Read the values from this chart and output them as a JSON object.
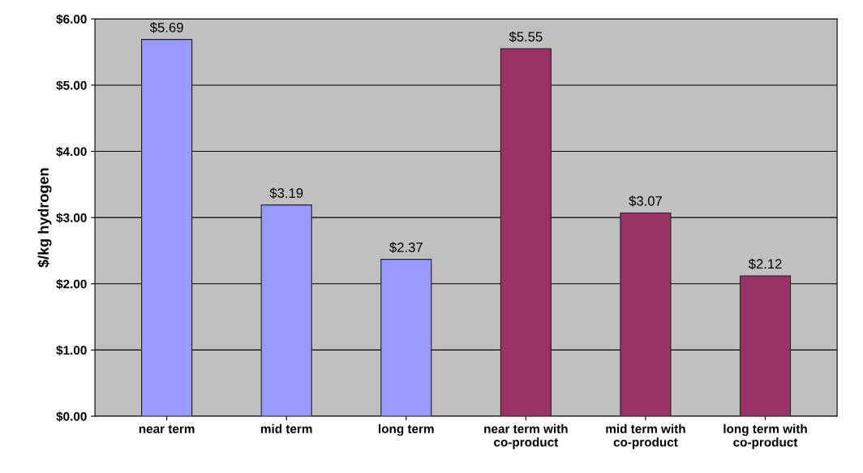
{
  "chart_data": {
    "type": "bar",
    "ylabel": "$/kg hydrogen",
    "categories": [
      "near term",
      "mid term",
      "long term",
      "near term with\nco-product",
      "mid term with\nco-product",
      "long term with\nco-product"
    ],
    "values": [
      5.69,
      3.19,
      2.37,
      5.55,
      3.07,
      2.12
    ],
    "value_labels": [
      "$5.69",
      "$3.19",
      "$2.37",
      "$5.55",
      "$3.07",
      "$2.12"
    ],
    "colors": [
      "#9999ff",
      "#9999ff",
      "#9999ff",
      "#993366",
      "#993366",
      "#993366"
    ],
    "ylim": [
      0,
      6
    ],
    "yticks": [
      {
        "value": 0,
        "label": "$0.00"
      },
      {
        "value": 1,
        "label": "$1.00"
      },
      {
        "value": 2,
        "label": "$2.00"
      },
      {
        "value": 3,
        "label": "$3.00"
      },
      {
        "value": 4,
        "label": "$4.00"
      },
      {
        "value": 5,
        "label": "$5.00"
      },
      {
        "value": 6,
        "label": "$6.00"
      }
    ],
    "grid": "y"
  }
}
